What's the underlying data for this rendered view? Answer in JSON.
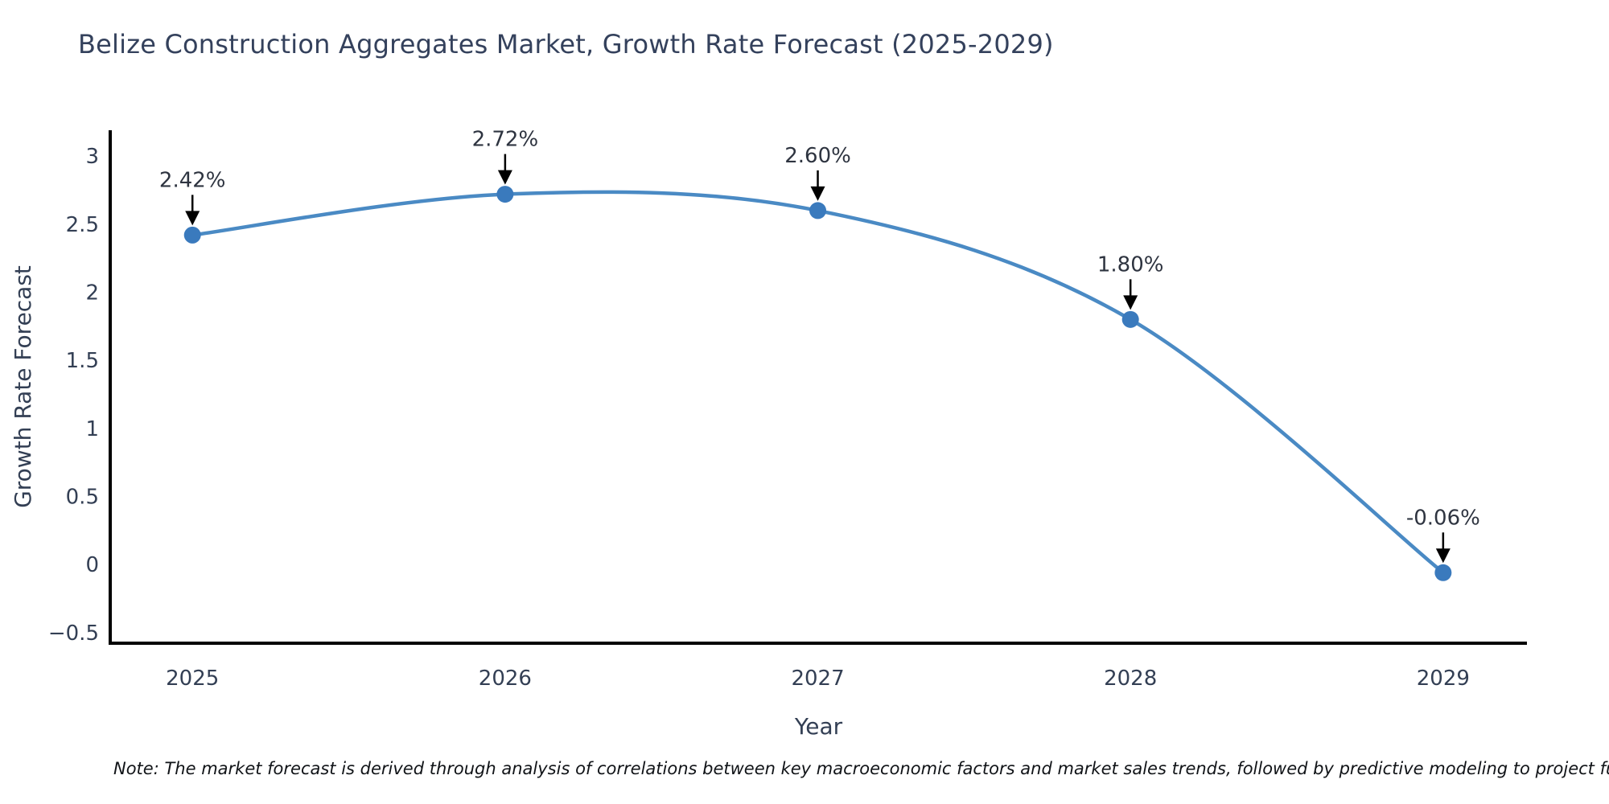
{
  "title": "Belize Construction Aggregates Market, Growth Rate Forecast (2025-2029)",
  "note": "Note: The market forecast is derived through analysis of correlations between key macroeconomic factors and market sales trends, followed by predictive modeling to project future sal",
  "chart_data": {
    "type": "line",
    "title": "Belize Construction Aggregates Market, Growth Rate Forecast (2025-2029)",
    "xlabel": "Year",
    "ylabel": "Growth Rate Forecast",
    "x": [
      2025,
      2026,
      2027,
      2028,
      2029
    ],
    "values": [
      2.42,
      2.72,
      2.6,
      1.8,
      -0.06
    ],
    "point_labels": [
      "2.42%",
      "2.72%",
      "2.60%",
      "1.80%",
      "-0.06%"
    ],
    "x_tick_labels": [
      "2025",
      "2026",
      "2027",
      "2028",
      "2029"
    ],
    "y_ticks": [
      3,
      2.5,
      2,
      1.5,
      1,
      0.5,
      0,
      -0.5
    ],
    "y_tick_labels": [
      "3",
      "2.5",
      "2",
      "1.5",
      "1",
      "0.5",
      "0",
      "−0.5"
    ],
    "xlim": [
      2024.737,
      2029.268
    ],
    "ylim": [
      -0.578,
      3.19
    ],
    "grid": false,
    "legend": "none",
    "annotations_have_arrows": true,
    "colors": {
      "line": "#4a8ac4",
      "marker": "#3a7abd",
      "arrow": "#000000",
      "axis": "#000000",
      "tick_text": "#333f54",
      "title_text": "#34415c",
      "annotation_text": "#2e3440",
      "note_text": "#111418",
      "background": "#ffffff"
    }
  }
}
